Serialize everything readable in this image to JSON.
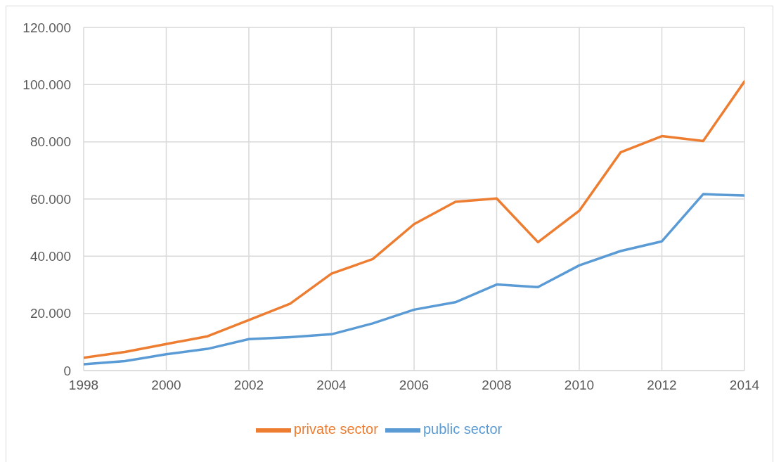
{
  "chart_data": {
    "type": "line",
    "x": [
      1998,
      1999,
      2000,
      2001,
      2002,
      2003,
      2004,
      2005,
      2006,
      2007,
      2008,
      2009,
      2010,
      2011,
      2012,
      2013,
      2014
    ],
    "series": [
      {
        "name": "public sector",
        "color": "#5b9bd5",
        "values": [
          2200,
          3300,
          5700,
          7600,
          11000,
          11700,
          12700,
          16500,
          21300,
          23900,
          30100,
          29200,
          36800,
          41800,
          45200,
          61700,
          61200
        ]
      },
      {
        "name": "private sector",
        "color": "#ed7d31",
        "values": [
          4500,
          6500,
          9300,
          12000,
          17700,
          23400,
          33900,
          39000,
          51200,
          59000,
          60200,
          44900,
          55900,
          76300,
          82000,
          80300,
          101100
        ]
      }
    ],
    "xlim": [
      1998,
      2014
    ],
    "xticks": [
      1998,
      2000,
      2002,
      2004,
      2006,
      2008,
      2010,
      2012,
      2014
    ],
    "ylim": [
      0,
      120000
    ],
    "yticks": [
      0,
      {
        "value": 20000,
        "label": "20.000"
      },
      {
        "value": 40000,
        "label": "40.000"
      },
      {
        "value": 60000,
        "label": "60.000"
      },
      {
        "value": 80000,
        "label": "80.000"
      },
      {
        "value": 100000,
        "label": "100.000"
      },
      {
        "value": 120000,
        "label": "120.000"
      }
    ],
    "grid": true,
    "legend": "bottom",
    "marker": "none",
    "line_style": "solid"
  }
}
